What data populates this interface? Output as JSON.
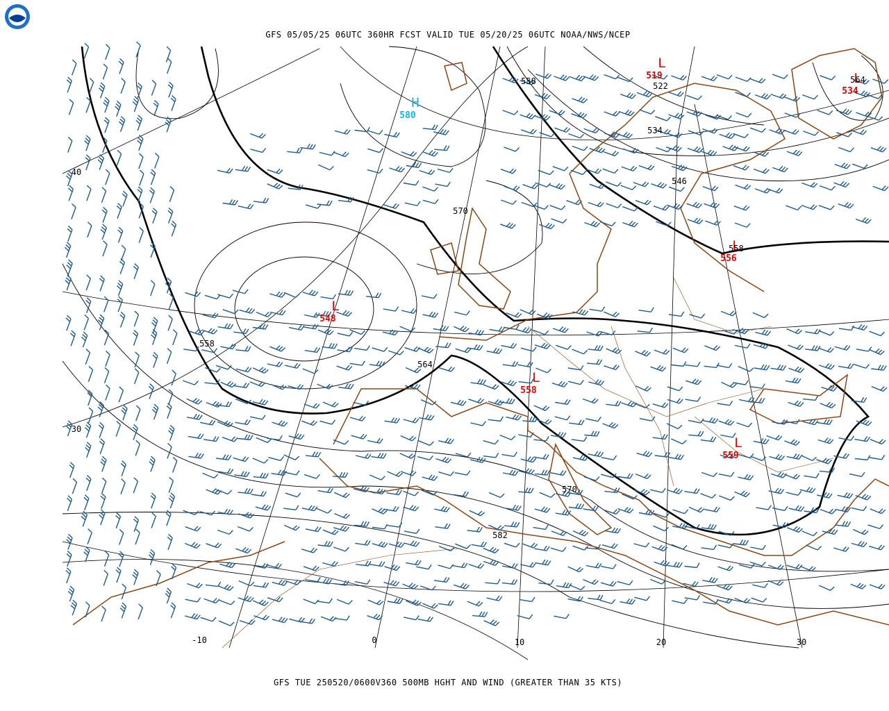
{
  "header": {
    "title": "GFS 05/05/25 06UTC 360HR FCST VALID TUE 05/20/25 06UTC NOAA/NWS/NCEP"
  },
  "footer": {
    "caption": "GFS TUE 250520/0600V360 500MB HGHT AND WIND (GREATER THAN 35 KTS)"
  },
  "centers": [
    {
      "symbol": "H",
      "value": 580
    },
    {
      "symbol": "L",
      "value": 519
    },
    {
      "symbol": "L",
      "value": 534
    },
    {
      "symbol": "L",
      "value": 548
    },
    {
      "symbol": "L",
      "value": 556
    },
    {
      "symbol": "L",
      "value": 558
    },
    {
      "symbol": "L",
      "value": 559
    }
  ],
  "contour_labels": [
    558,
    522,
    534,
    546,
    570,
    558,
    558,
    564,
    570,
    582,
    564
  ],
  "lat_labels": [
    40,
    30
  ],
  "lon_labels": [
    -10,
    0,
    10,
    20,
    30
  ]
}
